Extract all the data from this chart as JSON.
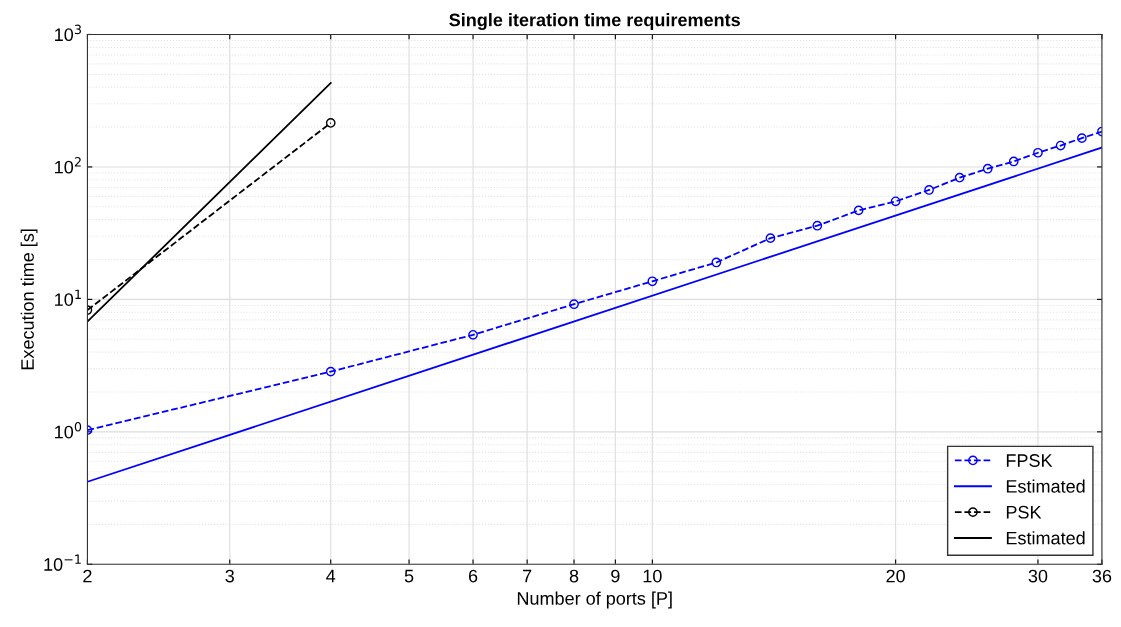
{
  "chart_data": {
    "type": "line",
    "title": "Single iteration time requirements",
    "xlabel": "Number of ports [P]",
    "ylabel": "Execution time [s]",
    "log": "xy",
    "grid": true,
    "legend": "bottom right",
    "xlim": [
      2,
      36
    ],
    "xticks": [
      2,
      3,
      4,
      5,
      6,
      7,
      8,
      9,
      10,
      20,
      30,
      36
    ],
    "ylim": [
      0.1,
      1000
    ],
    "yticks": [
      {
        "value": 0.1,
        "label": "10$^{−1}$"
      },
      {
        "value": 1,
        "label": "10$^{0}$"
      },
      {
        "value": 10,
        "label": "10$^{1}$"
      },
      {
        "value": 100,
        "label": "10$^{2}$"
      },
      {
        "value": 1000,
        "label": "10$^{3}$"
      }
    ],
    "series": [
      {
        "name": "FPSK",
        "color": "#0000ff",
        "marker": "circle",
        "line_style": "dashed",
        "x": [
          2,
          4,
          6,
          8,
          10,
          12,
          14,
          16,
          18,
          20,
          22,
          24,
          26,
          28,
          30,
          32,
          34,
          36
        ],
        "values": [
          1.03,
          2.85,
          5.4,
          9.2,
          13.7,
          19,
          29,
          36,
          47,
          55,
          67,
          83,
          97,
          110,
          128,
          145,
          165,
          185
        ]
      },
      {
        "name": "Estimated",
        "color": "#0000ff",
        "marker": "none",
        "line_style": "solid",
        "x": [
          2,
          36
        ],
        "values": [
          0.42,
          140
        ]
      },
      {
        "name": "PSK",
        "color": "#000000",
        "marker": "circle",
        "line_style": "dashed",
        "x": [
          2,
          4
        ],
        "values": [
          8.3,
          215
        ]
      },
      {
        "name": "Estimated",
        "color": "#000000",
        "marker": "none",
        "line_style": "solid",
        "x": [
          2,
          4
        ],
        "values": [
          6.8,
          430
        ]
      }
    ]
  }
}
